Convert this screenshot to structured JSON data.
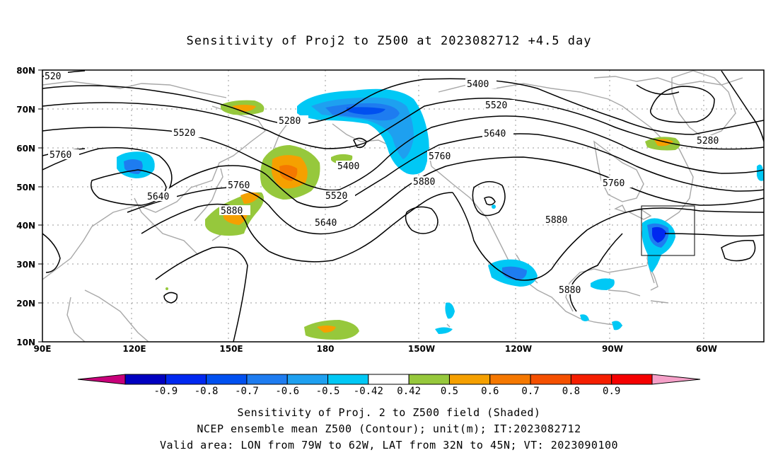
{
  "title": "Sensitivity of Proj2 to Z500 at 2023082712 +4.5 day",
  "lat_labels": [
    "80N",
    "70N",
    "60N",
    "50N",
    "40N",
    "30N",
    "20N",
    "10N"
  ],
  "lon_labels": [
    "90E",
    "120E",
    "150E",
    "180",
    "150W",
    "120W",
    "90W",
    "60W"
  ],
  "contour_labels": {
    "c520": "520",
    "c5760a": "5760",
    "c5520a": "5520",
    "c5640a": "5640",
    "c5760b": "5760",
    "c5880a": "5880",
    "c5280a": "5280",
    "c5400a": "5400",
    "c5520b": "5520",
    "c5640b": "5640",
    "c5400b": "5400",
    "c5520c": "5520",
    "c5640c": "5640",
    "c5760c": "5760",
    "c5880b": "5880",
    "c5880c": "5880",
    "c5760d": "5760",
    "c5880d": "5880",
    "c5280b": "5280"
  },
  "colorbar": {
    "ticks": [
      "-0.9",
      "-0.8",
      "-0.7",
      "-0.6",
      "-0.5",
      "-0.42",
      "0.42",
      "0.5",
      "0.6",
      "0.7",
      "0.8",
      "0.9"
    ],
    "colors": [
      "#c8007a",
      "#0000c0",
      "#0028f0",
      "#0050f0",
      "#1e7cf0",
      "#1ea0f0",
      "#00c8f5",
      "#ffffff",
      "#96c83c",
      "#f5a000",
      "#f57800",
      "#f55000",
      "#f51e00",
      "#f50000",
      "#f5a0c8"
    ]
  },
  "footer": {
    "line1": "Sensitivity of Proj. 2 to Z500 field (Shaded)",
    "line2": "NCEP ensemble mean Z500 (Contour); unit(m); IT:2023082712",
    "line3": "Valid area: LON from 79W to 62W, LAT from 32N to 45N; VT: 2023090100"
  }
}
